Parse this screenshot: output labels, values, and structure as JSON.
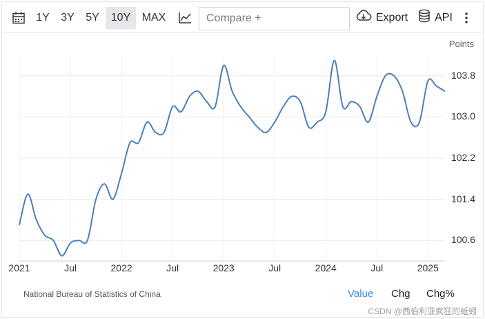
{
  "toolbar": {
    "ranges": [
      "1Y",
      "3Y",
      "5Y",
      "10Y",
      "MAX"
    ],
    "active_range": "10Y",
    "compare_placeholder": "Compare +",
    "export_label": "Export",
    "api_label": "API",
    "icons": {
      "calendar": "calendar-icon",
      "chart_type": "line-chart-icon",
      "export": "cloud-download-icon",
      "api": "database-icon",
      "more": "vertical-dots-icon"
    }
  },
  "footer": {
    "source": "National Bureau of Statistics of China",
    "tabs": [
      "Value",
      "Chg",
      "Chg%"
    ],
    "active_tab": "Value",
    "watermark": "CSDN @西伯利亚疯狂的蚯蚓"
  },
  "colors": {
    "line": "#4a7ebb",
    "active_tab": "#3a8ee6",
    "grid": "#e8e8e8"
  },
  "chart_data": {
    "type": "line",
    "units_label": "Points",
    "x_tick_labels": [
      "2021",
      "Jul",
      "2022",
      "Jul",
      "2023",
      "Jul",
      "2024",
      "Jul",
      "2025"
    ],
    "yticks": [
      100.6,
      101.4,
      102.2,
      103.0,
      103.8
    ],
    "ytick_labels": [
      "100.6",
      "101.4",
      "102.2",
      "103.0",
      "103.8"
    ],
    "ylim": [
      100.2,
      104.2
    ],
    "xlim": [
      "2021-01",
      "2025-03"
    ],
    "grid": true,
    "series": [
      {
        "x": [
          "2021-01",
          "2021-02",
          "2021-03",
          "2021-04",
          "2021-05",
          "2021-06",
          "2021-07",
          "2021-08",
          "2021-09",
          "2021-10",
          "2021-11",
          "2021-12",
          "2022-01",
          "2022-02",
          "2022-03",
          "2022-04",
          "2022-05",
          "2022-06",
          "2022-07",
          "2022-08",
          "2022-09",
          "2022-10",
          "2022-11",
          "2022-12",
          "2023-01",
          "2023-02",
          "2023-03",
          "2023-04",
          "2023-05",
          "2023-06",
          "2023-07",
          "2023-08",
          "2023-09",
          "2023-10",
          "2023-11",
          "2023-12",
          "2024-01",
          "2024-02",
          "2024-03",
          "2024-04",
          "2024-05",
          "2024-06",
          "2024-07",
          "2024-08",
          "2024-09",
          "2024-10",
          "2024-11",
          "2024-12",
          "2025-01",
          "2025-02",
          "2025-03"
        ],
        "values": [
          100.9,
          101.5,
          101.0,
          100.7,
          100.6,
          100.3,
          100.55,
          100.6,
          100.6,
          101.4,
          101.7,
          101.4,
          101.9,
          102.5,
          102.5,
          102.9,
          102.7,
          102.7,
          103.2,
          103.1,
          103.4,
          103.5,
          103.3,
          103.2,
          104.0,
          103.5,
          103.2,
          103.0,
          102.8,
          102.7,
          102.9,
          103.2,
          103.4,
          103.3,
          102.8,
          102.9,
          103.1,
          104.1,
          103.2,
          103.3,
          103.2,
          102.9,
          103.4,
          103.8,
          103.8,
          103.5,
          102.9,
          102.9,
          103.7,
          103.6,
          103.5
        ]
      }
    ]
  }
}
